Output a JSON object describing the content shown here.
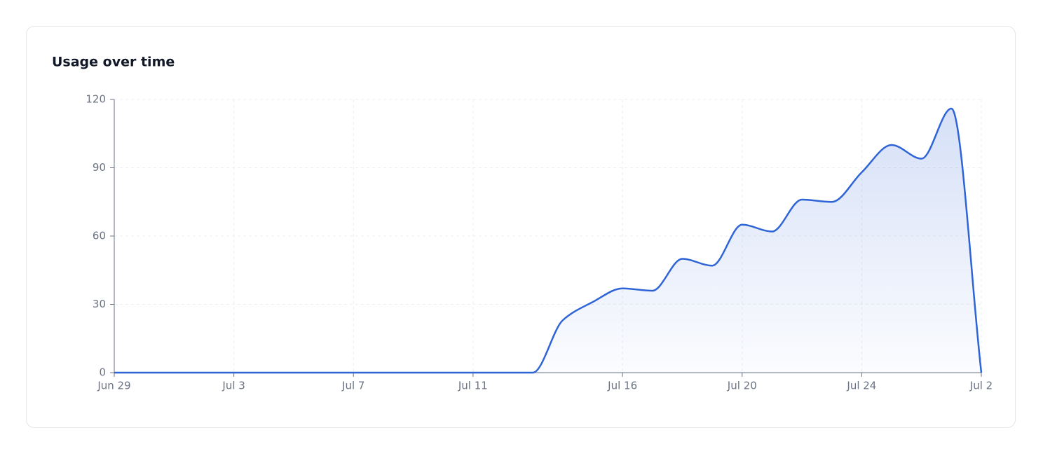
{
  "chart_data": {
    "type": "area",
    "title": "Usage over time",
    "categories": [
      "Jun 29",
      null,
      null,
      null,
      "Jul 3",
      null,
      null,
      null,
      "Jul 7",
      null,
      null,
      null,
      "Jul 11",
      null,
      null,
      null,
      null,
      "Jul 16",
      null,
      null,
      null,
      "Jul 20",
      null,
      null,
      null,
      "Jul 24",
      null,
      null,
      null,
      "Jul 2"
    ],
    "series": [
      {
        "name": "Usage",
        "color": "#2f64d6",
        "values": [
          0,
          0,
          0,
          0,
          0,
          0,
          0,
          0,
          0,
          0,
          0,
          0,
          0,
          0,
          0,
          23,
          31,
          37,
          36,
          50,
          47,
          65,
          62,
          76,
          75,
          88,
          100,
          94,
          116,
          0
        ]
      }
    ],
    "ylim": [
      0,
      120
    ],
    "yticks": [
      0,
      30,
      60,
      90,
      120
    ],
    "grid": true
  }
}
